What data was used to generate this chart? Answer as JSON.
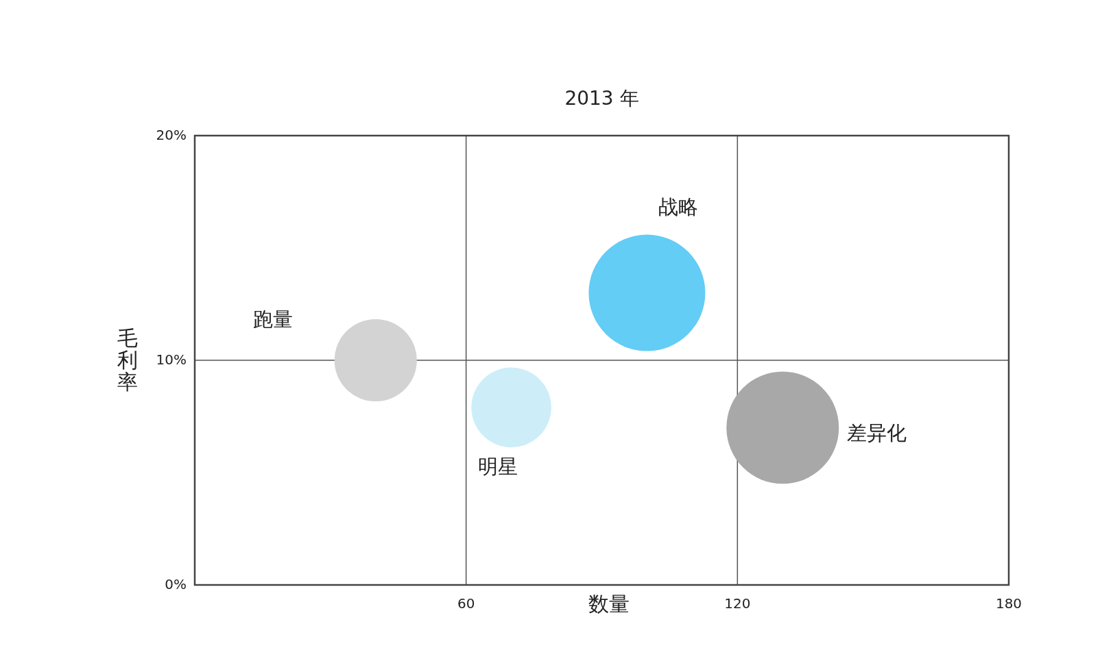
{
  "chart_data": {
    "type": "bubble",
    "title": "2013 年",
    "xlabel": "数量",
    "ylabel": "毛利率",
    "xlim": [
      0,
      180
    ],
    "xticks": [
      60,
      120,
      180
    ],
    "ylim": [
      0,
      20
    ],
    "yticks": [
      {
        "value": 0,
        "label": "0%"
      },
      {
        "value": 10,
        "label": "10%"
      },
      {
        "value": 20,
        "label": "20%"
      }
    ],
    "grid": true,
    "series": [
      {
        "name": "跑量",
        "color": "#d3d3d3",
        "x": [
          40
        ],
        "values": [
          10
        ],
        "sizes": [
          0.5
        ]
      },
      {
        "name": "明星",
        "color": "#cdeef9",
        "x": [
          70
        ],
        "values": [
          7.9
        ],
        "sizes": [
          0.47
        ]
      },
      {
        "name": "战略",
        "color": "#63cdf5",
        "x": [
          100
        ],
        "values": [
          13
        ],
        "sizes": [
          1
        ]
      },
      {
        "name": "差异化",
        "color": "#a9a8a8",
        "x": [
          130
        ],
        "values": [
          7
        ],
        "sizes": [
          0.93
        ]
      }
    ]
  }
}
